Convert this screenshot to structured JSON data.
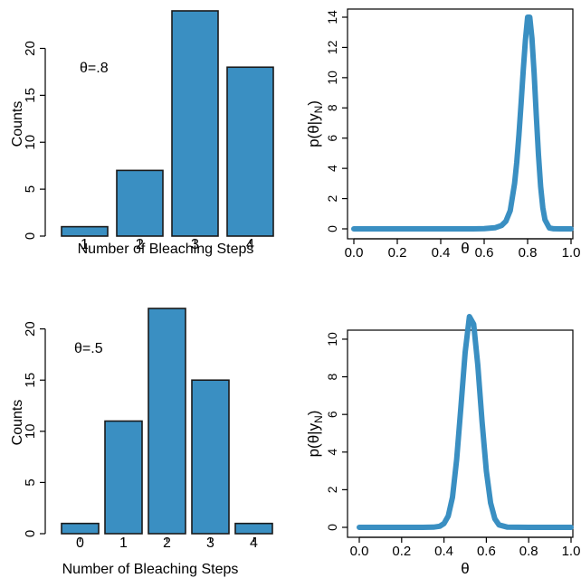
{
  "colors": {
    "bar_fill": "#3a8fc2",
    "bar_stroke": "#1a1a1a",
    "line": "#3a8fc2",
    "axis": "#000000"
  },
  "chart_data": [
    {
      "type": "bar",
      "panel": "top-left",
      "categories": [
        "1",
        "2",
        "3",
        "4"
      ],
      "values": [
        1,
        7,
        24,
        18
      ],
      "xlabel": "Number of Bleaching Steps",
      "ylabel": "Counts",
      "ylim": [
        0,
        24
      ],
      "yticks": [
        0,
        5,
        10,
        15,
        20
      ],
      "annotation": "θ=.8",
      "grid": false
    },
    {
      "type": "line",
      "panel": "top-right",
      "xlabel": "θ",
      "ylabel": "p(θ|yN)",
      "xlim": [
        0,
        1
      ],
      "ylim": [
        0,
        14
      ],
      "xticks": [
        "0.0",
        "0.2",
        "0.4",
        "0.6",
        "0.8",
        "1.0"
      ],
      "yticks": [
        0,
        2,
        4,
        6,
        8,
        10,
        12,
        14
      ],
      "x": [
        0,
        0.1,
        0.2,
        0.3,
        0.4,
        0.5,
        0.55,
        0.6,
        0.65,
        0.68,
        0.7,
        0.72,
        0.74,
        0.75,
        0.76,
        0.77,
        0.78,
        0.79,
        0.8,
        0.81,
        0.82,
        0.83,
        0.84,
        0.85,
        0.86,
        0.87,
        0.88,
        0.9,
        0.92,
        0.95,
        1.0
      ],
      "y": [
        0,
        0,
        0,
        0,
        0,
        0,
        0,
        0.01,
        0.07,
        0.22,
        0.5,
        1.2,
        3.0,
        4.4,
        6.2,
        8.3,
        10.5,
        12.5,
        14.0,
        14.0,
        12.6,
        10.3,
        7.5,
        4.9,
        2.8,
        1.4,
        0.6,
        0.06,
        0.005,
        0,
        0
      ],
      "grid": false
    },
    {
      "type": "bar",
      "panel": "bottom-left",
      "categories": [
        "0",
        "1",
        "2",
        "3",
        "4"
      ],
      "values": [
        1,
        11,
        22,
        15,
        1
      ],
      "xlabel": "Number of Bleaching Steps",
      "ylabel": "Counts",
      "ylim": [
        0,
        22
      ],
      "yticks": [
        0,
        5,
        10,
        15,
        20
      ],
      "annotation": "θ=.5",
      "grid": false
    },
    {
      "type": "line",
      "panel": "bottom-right",
      "xlabel": "θ",
      "ylabel": "p(θ|yN)",
      "xlim": [
        0,
        1
      ],
      "ylim": [
        0,
        11.2
      ],
      "xticks": [
        "0.0",
        "0.2",
        "0.4",
        "0.6",
        "0.8",
        "1.0"
      ],
      "yticks": [
        0,
        2,
        4,
        6,
        8,
        10
      ],
      "x": [
        0,
        0.1,
        0.2,
        0.3,
        0.35,
        0.38,
        0.4,
        0.42,
        0.44,
        0.46,
        0.48,
        0.5,
        0.52,
        0.54,
        0.56,
        0.58,
        0.6,
        0.62,
        0.64,
        0.66,
        0.7,
        0.8,
        0.9,
        1.0
      ],
      "y": [
        0,
        0,
        0,
        0,
        0.01,
        0.06,
        0.2,
        0.6,
        1.6,
        3.6,
        6.4,
        9.3,
        11.2,
        10.8,
        8.6,
        5.6,
        3.0,
        1.3,
        0.45,
        0.13,
        0.01,
        0,
        0,
        0
      ],
      "grid": false
    }
  ]
}
